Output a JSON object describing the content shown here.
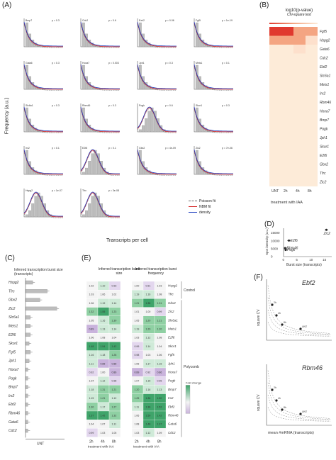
{
  "panels": {
    "A": "(A)",
    "B": "(B)",
    "C": "(C)",
    "D": "(D)",
    "E": "(E)",
    "F": "(F)"
  },
  "panelA": {
    "ylabel": "Frequency (a.u.)",
    "xlabel": "Transcripts per cell",
    "subplots": [
      {
        "gene": "Bmp7",
        "p": "p = 0.3"
      },
      {
        "gene": "Cdc2",
        "p": "p = 0.6"
      },
      {
        "gene": "Ezh2",
        "p": "p = 0.06"
      },
      {
        "gene": "Fgf5",
        "p": "p = 1e-19"
      },
      {
        "gene": "Gata6",
        "p": "p = 0.3"
      },
      {
        "gene": "Hoxa7",
        "p": "p = 0.003"
      },
      {
        "gene": "Jph1",
        "p": "p = 0.3"
      },
      {
        "gene": "Meis1",
        "p": "p = 0.1"
      },
      {
        "gene": "Slc6a1",
        "p": "p = 0.3"
      },
      {
        "gene": "Rbm46",
        "p": "p = 0.3"
      },
      {
        "gene": "Pogk",
        "p": "p = 0.6"
      },
      {
        "gene": "Skor1",
        "p": "p = 0.3"
      },
      {
        "gene": "Irx2",
        "p": "p = 0.1"
      },
      {
        "gene": "E2f6",
        "p": "p = 0.1"
      },
      {
        "gene": "Gbx2",
        "p": "p = 4e-09"
      },
      {
        "gene": "Zic2",
        "p": "p = 7e-06"
      },
      {
        "gene": "Hspg2",
        "p": "p = 1e-07"
      },
      {
        "gene": "Tfrc",
        "p": "p = 3e-08"
      }
    ],
    "legend": [
      "Poisson fit",
      "NBM fit",
      "density"
    ]
  },
  "panelB": {
    "title": "log10(p-value)",
    "subtitle": "Chi-square test",
    "scale_ticks": [
      "-15",
      "-10",
      "-5",
      "0"
    ],
    "genes": [
      "Fgf5",
      "Hspg2",
      "Gata6",
      "Cdc2",
      "Ebf2",
      "Slc6a1",
      "Meis1",
      "Irx2",
      "Rbm46",
      "Hoxa7",
      "Bmp7",
      "Pogk",
      "Jph1",
      "Skor1",
      "E2f6",
      "Gbx2",
      "Tfrc",
      "Zic2"
    ],
    "columns": [
      "UNT",
      "2h",
      "4h",
      "8h"
    ],
    "xlabel": "treatment with IAA",
    "colors": {
      "high": "#e0392f",
      "mid": "#f4a582",
      "low": "#fde0cc",
      "base": "#fdebd8"
    }
  },
  "panelD": {
    "ylabel": "Spot intensity (a.u.)",
    "xlabel": "Burst size (transcripts)",
    "yticks": [
      "15000",
      "10000",
      "5000",
      "0"
    ],
    "xticks": [
      "0",
      "5",
      "10",
      "15"
    ],
    "points": [
      {
        "label": "Zic2",
        "x": 16,
        "y": 17000
      },
      {
        "label": "E2f6",
        "x": 2,
        "y": 10200
      },
      {
        "label": "Rbm46",
        "x": 0.6,
        "y": 5400
      },
      {
        "label": "Pogk",
        "x": 0.8,
        "y": 4200
      }
    ]
  },
  "panelC": {
    "title": "Inferred transcription burst size (transcripts)",
    "genes": [
      "Hspg2",
      "Tfrc",
      "Gbx2",
      "Zic2",
      "Slc6a1",
      "Meis1",
      "E2f6",
      "Skor1",
      "Fgf5",
      "Jph1",
      "Hoxa7",
      "Pogk",
      "Bmp7",
      "Irx2",
      "Ebf2",
      "Rbm46",
      "Gata6",
      "Cdc2"
    ],
    "values": [
      3,
      9,
      6,
      13,
      2,
      2,
      2,
      1.5,
      2,
      1.5,
      1,
      1,
      1,
      1,
      1,
      1,
      1,
      1
    ],
    "xlabel": "UNT"
  },
  "panelE": {
    "left_title": "Inferred transcription burst size",
    "right_title": "Inferred transcription burst frequency",
    "genes": [
      "Hspg2",
      "Tfrc",
      "Gbx2",
      "Zic2",
      "Slc6a1",
      "Meis1",
      "E2f6",
      "Skor1",
      "Fgf5",
      "Jph1",
      "Hoxa7",
      "Pogk",
      "Bmp7",
      "Irx2",
      "Ebf2",
      "Rbm46",
      "Gata6",
      "Cdc2"
    ],
    "groups": [
      "Control",
      "Polycomb"
    ],
    "columns": [
      "2h",
      "4h",
      "8h"
    ],
    "xlabel": "treatment with IAA",
    "legend_title": "Fold change",
    "size_values": [
      [
        "1.02",
        "1.10",
        "0.93"
      ],
      [
        "1.03",
        "1.06",
        "1.02"
      ],
      [
        "1.06",
        "1.19",
        "1.14"
      ],
      [
        "1.32",
        "1.55",
        "1.23"
      ],
      [
        "1.05",
        "1.16",
        "1.30"
      ],
      [
        "0.89",
        "1.13",
        "1.14"
      ],
      [
        "1.06",
        "1.08",
        "1.04"
      ],
      [
        "1.48",
        "1.54",
        "1.42"
      ],
      [
        "1.16",
        "1.18",
        "1.28"
      ],
      [
        "1.11",
        "0.85",
        "0.88"
      ],
      [
        "0.92",
        "1.00",
        "0.86"
      ],
      [
        "1.04",
        "1.12",
        "0.98"
      ],
      [
        "1.18",
        "1.31",
        "1.21"
      ],
      [
        "1.15",
        "1.21",
        "1.12"
      ],
      [
        "1.30",
        "1.17",
        "1.27"
      ],
      [
        "1.37",
        "1.42",
        "1.32"
      ],
      [
        "1.04",
        "1.07",
        "1.11"
      ],
      [
        "0.99",
        "1.03",
        "1.05"
      ]
    ],
    "freq_values": [
      [
        "1.00",
        "0.91",
        "1.03"
      ],
      [
        "1.19",
        "1.16",
        "1.08"
      ],
      [
        "1.21",
        "1.38",
        "1.31"
      ],
      [
        "1.01",
        "1.00",
        "0.99"
      ],
      [
        "1.05",
        "1.20",
        "1.21"
      ],
      [
        "1.19",
        "1.29",
        "1.20"
      ],
      [
        "1.03",
        "1.12",
        "1.08"
      ],
      [
        "0.99",
        "1.14",
        "1.04"
      ],
      [
        "0.98",
        "1.03",
        "1.06"
      ],
      [
        "1.06",
        "1.17",
        "1.16"
      ],
      [
        "0.89",
        "0.92",
        "0.86"
      ],
      [
        "1.07",
        "1.15",
        "0.96"
      ],
      [
        "1.20",
        "1.16",
        "1.13"
      ],
      [
        "1.25",
        "1.36",
        "1.50"
      ],
      [
        "1.11",
        "1.36",
        "1.52"
      ],
      [
        "1.06",
        "1.50",
        "1.42"
      ],
      [
        "1.08",
        "1.48",
        "1.37"
      ],
      [
        "1.03",
        "1.12",
        "1.09"
      ]
    ]
  },
  "panelF": {
    "genes": [
      "Ebf2",
      "Rbm46"
    ],
    "ylabel": "square CV",
    "xlabel": "mean #mRNA (transcripts)",
    "point_labels": [
      "2h",
      "4h",
      "8h",
      "UNT"
    ]
  }
}
